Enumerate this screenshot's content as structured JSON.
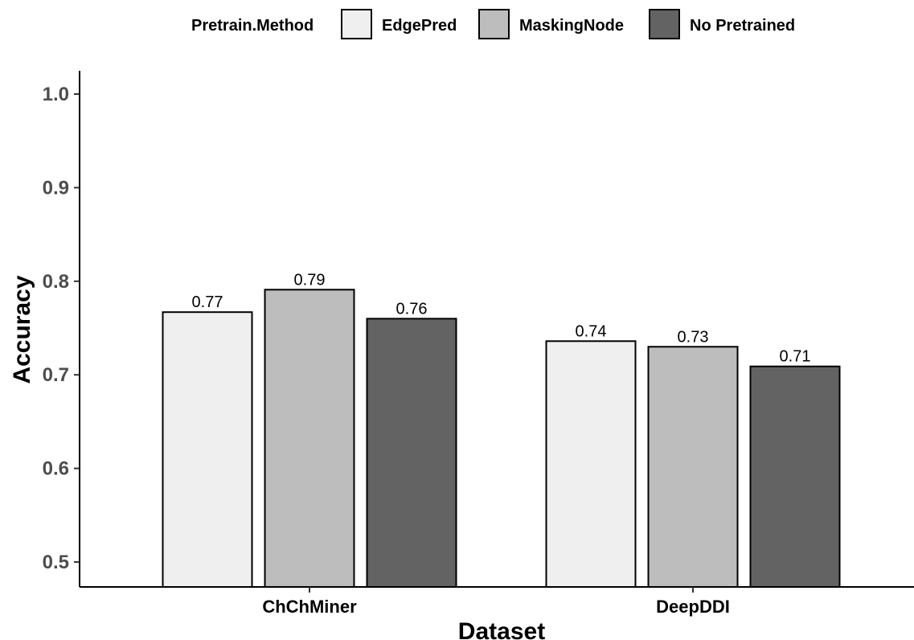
{
  "chart_data": {
    "type": "bar",
    "xlabel": "Dataset",
    "ylabel": "Accuracy",
    "categories": [
      "ChChMiner",
      "DeepDDI"
    ],
    "legend_title": "Pretrain.Method",
    "legend_position": "top",
    "ylim": [
      0.48,
      1.02
    ],
    "yticks": [
      0.5,
      0.6,
      0.7,
      0.8,
      0.9,
      1.0
    ],
    "ytick_labels": [
      "0.5",
      "0.6",
      "0.7",
      "0.8",
      "0.9",
      "1.0"
    ],
    "grid": false,
    "series": [
      {
        "name": "EdgePred",
        "color": "#efefef",
        "values": [
          0.767,
          0.736
        ],
        "labels": [
          "0.77",
          "0.74"
        ]
      },
      {
        "name": "MaskingNode",
        "color": "#bdbdbd",
        "values": [
          0.791,
          0.73
        ],
        "labels": [
          "0.79",
          "0.73"
        ]
      },
      {
        "name": "No Pretrained",
        "color": "#636363",
        "values": [
          0.76,
          0.709
        ],
        "labels": [
          "0.76",
          "0.71"
        ]
      }
    ]
  }
}
